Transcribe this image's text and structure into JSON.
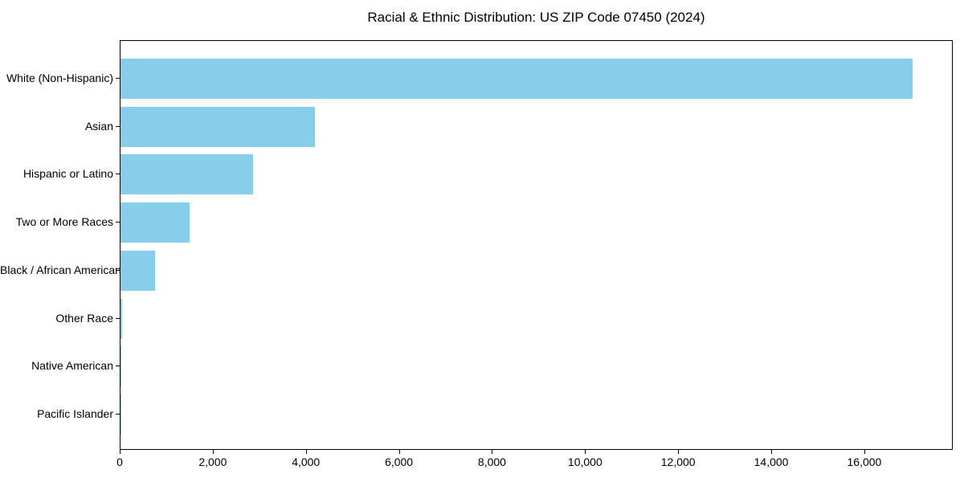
{
  "chart_data": {
    "type": "bar",
    "orientation": "horizontal",
    "title": "Racial & Ethnic Distribution: US ZIP Code 07450 (2024)",
    "categories": [
      "White (Non-Hispanic)",
      "Asian",
      "Hispanic or Latino",
      "Two or More Races",
      "Black / African American",
      "Other Race",
      "Native American",
      "Pacific Islander"
    ],
    "values": [
      17050,
      4180,
      2850,
      1480,
      740,
      30,
      12,
      5
    ],
    "xlabel": "",
    "ylabel": "",
    "xlim": [
      0,
      17900
    ],
    "xticks": [
      0,
      2000,
      4000,
      6000,
      8000,
      10000,
      12000,
      14000,
      16000
    ],
    "xtick_labels": [
      "0",
      "2,000",
      "4,000",
      "6,000",
      "8,000",
      "10,000",
      "12,000",
      "14,000",
      "16,000"
    ],
    "grid": false,
    "legend": false,
    "colors": {
      "bar": "#87CEEB",
      "spine": "#000000",
      "text": "#000000",
      "background": "#FFFFFF"
    }
  }
}
